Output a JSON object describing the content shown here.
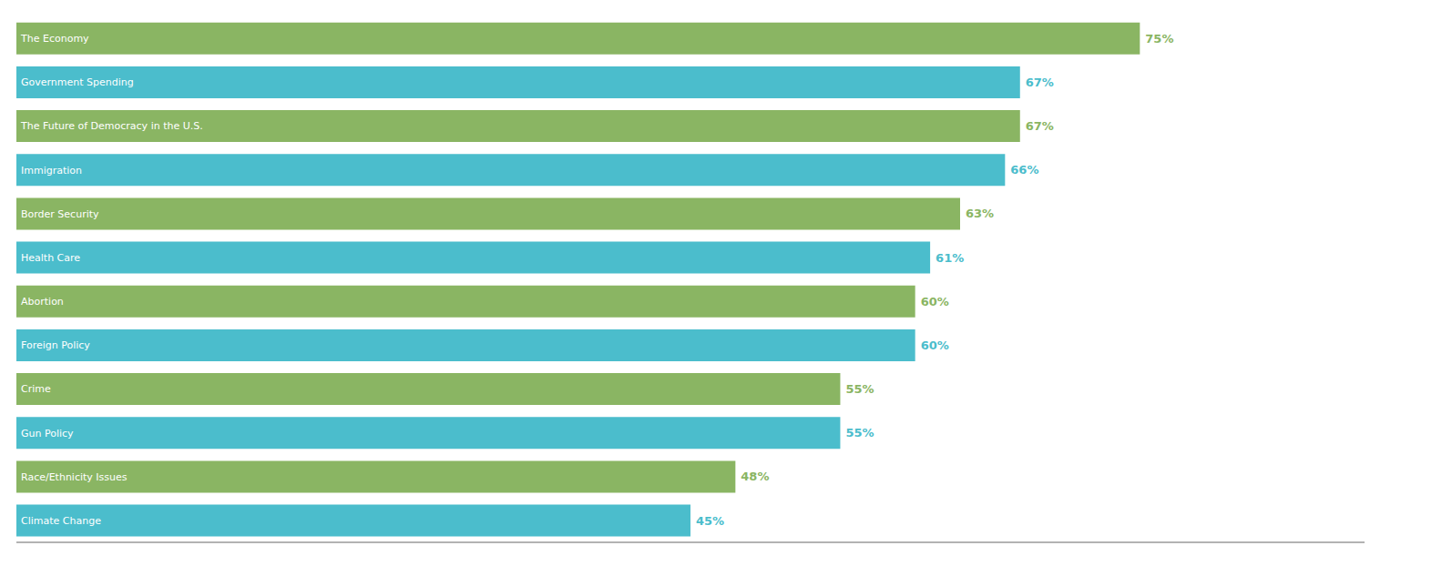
{
  "chart_data": {
    "type": "bar",
    "orientation": "horizontal",
    "categories": [
      "The Economy",
      "Government Spending",
      "The Future of Democracy in the U.S.",
      "Immigration",
      "Border Security",
      "Health Care",
      "Abortion",
      "Foreign Policy",
      "Crime",
      "Gun Policy",
      "Race/Ethnicity Issues",
      "Climate Change"
    ],
    "values": [
      75,
      67,
      67,
      66,
      63,
      61,
      60,
      60,
      55,
      55,
      48,
      45
    ],
    "value_labels": [
      "75%",
      "67%",
      "67%",
      "66%",
      "63%",
      "61%",
      "60%",
      "60%",
      "55%",
      "55%",
      "48%",
      "45%"
    ],
    "colors": [
      "#8ab563",
      "#4bbdcc",
      "#8ab563",
      "#4bbdcc",
      "#8ab563",
      "#4bbdcc",
      "#8ab563",
      "#4bbdcc",
      "#8ab563",
      "#4bbdcc",
      "#8ab563",
      "#4bbdcc"
    ],
    "xlim": [
      0,
      90
    ],
    "data_labels": true,
    "tick_labels": false
  }
}
